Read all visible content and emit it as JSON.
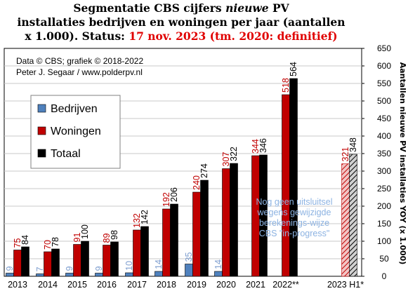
{
  "title_lines": [
    [
      {
        "t": "Segmentatie CBS cijfers "
      },
      {
        "t": "nieuwe",
        "i": true
      },
      {
        "t": " PV"
      }
    ],
    [
      {
        "t": "installaties  bedrijven  en woningen per jaar (aantallen"
      }
    ],
    [
      {
        "t": "x 1.000). Status: "
      },
      {
        "t": "17 nov. 2023 (tm. 2020: definitief)",
        "red": true
      }
    ]
  ],
  "credit": [
    "Data © CBS;  grafiek © 2018-2022",
    "Peter J. Segaar / www.polderpv.nl"
  ],
  "annotation": [
    "Nog geen uitsluitsel",
    "wegens gewijzigde",
    "berekenings-wijze",
    "CBS \"in-progress\""
  ],
  "colors": {
    "bedrijven": "#4f81bd",
    "woningen": "#c00000",
    "totaal": "#000000",
    "label_blue": "#7f9fd0",
    "annotation": "#8db3e2",
    "title_red": "#e00000"
  },
  "chart_data": {
    "type": "bar",
    "categories": [
      "2013",
      "2014",
      "2015",
      "2016",
      "2017",
      "2018",
      "2019",
      "2020",
      "2021",
      "2022**",
      "2023 H1*"
    ],
    "series": [
      {
        "name": "Bedrijven",
        "values": [
          9,
          7,
          9,
          9,
          10,
          14,
          35,
          14,
          null,
          null,
          null
        ]
      },
      {
        "name": "Woningen",
        "values": [
          75,
          70,
          91,
          89,
          132,
          192,
          240,
          307,
          344,
          518,
          321
        ]
      },
      {
        "name": "Totaal",
        "values": [
          84,
          78,
          100,
          98,
          142,
          206,
          274,
          322,
          346,
          564,
          348
        ]
      }
    ],
    "ylabel": "Aantallen nieuwe PV installaties YOY (x 1.000)",
    "yticks": [
      0,
      50,
      100,
      150,
      200,
      250,
      300,
      350,
      400,
      450,
      500,
      550,
      600,
      650
    ],
    "ylim": [
      0,
      650
    ],
    "legend": [
      "Bedrijven",
      "Woningen",
      "Totaal"
    ],
    "grid": true,
    "legend_position": "upper-left"
  }
}
